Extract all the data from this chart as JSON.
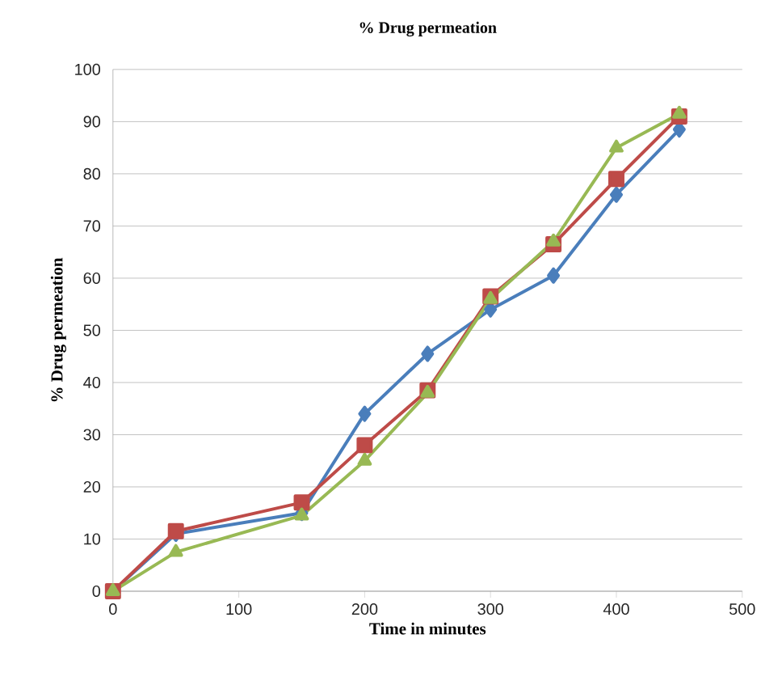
{
  "chart_data": {
    "type": "line",
    "title": "% Drug permeation",
    "xlabel": "Time in minutes",
    "ylabel": "% Drug permeation",
    "x": [
      0,
      50,
      150,
      200,
      250,
      300,
      350,
      400,
      450
    ],
    "series": [
      {
        "color": "#4a7ebb",
        "marker": "diamond",
        "values": [
          0,
          11,
          15,
          34,
          45.5,
          54,
          60.5,
          76,
          88.5
        ]
      },
      {
        "color": "#be4b48",
        "marker": "square",
        "values": [
          0,
          11.5,
          17,
          28,
          38.5,
          56.5,
          66.5,
          79,
          91
        ]
      },
      {
        "color": "#98b954",
        "marker": "triangle",
        "values": [
          0,
          7.5,
          14.5,
          25,
          38,
          56,
          67,
          85,
          91.5
        ]
      }
    ],
    "xlim": [
      0,
      500
    ],
    "ylim": [
      0,
      100
    ],
    "xticks": [
      0,
      100,
      200,
      300,
      400,
      500
    ],
    "yticks": [
      0,
      10,
      20,
      30,
      40,
      50,
      60,
      70,
      80,
      90,
      100
    ],
    "grid": "y",
    "line_style": "solid"
  }
}
